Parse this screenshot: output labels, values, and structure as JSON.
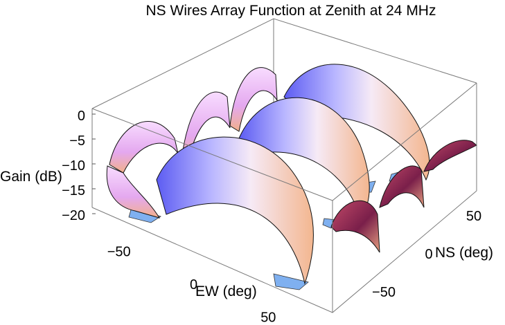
{
  "chart_data": {
    "type": "surface3d",
    "title": "NS Wires Array Function at Zenith at 24 MHz",
    "xlabel": "EW (deg)",
    "ylabel": "NS (deg)",
    "zlabel": "Gain (dB)",
    "x_range": [
      -80,
      80
    ],
    "y_range": [
      -80,
      80
    ],
    "z_range": [
      -20,
      0
    ],
    "z_ticks": [
      0,
      -5,
      -10,
      -15,
      -20
    ],
    "x_ticks": [
      -50,
      0,
      50
    ],
    "y_ticks": [
      -50,
      0,
      50
    ],
    "lobe_count": 6,
    "main_lobe_peak_db": 0,
    "floor_db": -20,
    "colors": {
      "surface_light": "#f4e6ff",
      "surface_blue": "#5a5af0",
      "surface_orange": "#f0a078",
      "surface_dark": "#7a1f4a",
      "floor_fill": "#7fb0f0"
    }
  }
}
